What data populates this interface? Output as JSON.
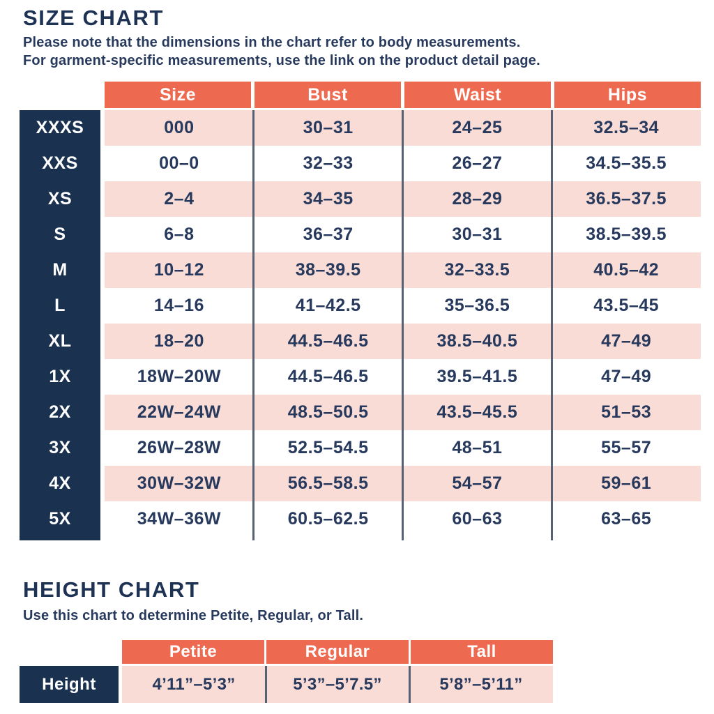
{
  "colors": {
    "coral_header": "#ED6A50",
    "pink_row": "#FADCD6",
    "navy_label": "#1A3150",
    "text_navy": "#27395C",
    "divider": "#566274"
  },
  "size_chart": {
    "title": "SIZE CHART",
    "note_line1": "Please note that the dimensions in the chart refer to body measurements.",
    "note_line2": "For garment-specific measurements, use the link on the product detail page.",
    "columns": [
      "Size",
      "Bust",
      "Waist",
      "Hips"
    ],
    "rows": [
      {
        "label": "XXXS",
        "cells": [
          "000",
          "30–31",
          "24–25",
          "32.5–34"
        ]
      },
      {
        "label": "XXS",
        "cells": [
          "00–0",
          "32–33",
          "26–27",
          "34.5–35.5"
        ]
      },
      {
        "label": "XS",
        "cells": [
          "2–4",
          "34–35",
          "28–29",
          "36.5–37.5"
        ]
      },
      {
        "label": "S",
        "cells": [
          "6–8",
          "36–37",
          "30–31",
          "38.5–39.5"
        ]
      },
      {
        "label": "M",
        "cells": [
          "10–12",
          "38–39.5",
          "32–33.5",
          "40.5–42"
        ]
      },
      {
        "label": "L",
        "cells": [
          "14–16",
          "41–42.5",
          "35–36.5",
          "43.5–45"
        ]
      },
      {
        "label": "XL",
        "cells": [
          "18–20",
          "44.5–46.5",
          "38.5–40.5",
          "47–49"
        ]
      },
      {
        "label": "1X",
        "cells": [
          "18W–20W",
          "44.5–46.5",
          "39.5–41.5",
          "47–49"
        ]
      },
      {
        "label": "2X",
        "cells": [
          "22W–24W",
          "48.5–50.5",
          "43.5–45.5",
          "51–53"
        ]
      },
      {
        "label": "3X",
        "cells": [
          "26W–28W",
          "52.5–54.5",
          "48–51",
          "55–57"
        ]
      },
      {
        "label": "4X",
        "cells": [
          "30W–32W",
          "56.5–58.5",
          "54–57",
          "59–61"
        ]
      },
      {
        "label": "5X",
        "cells": [
          "34W–36W",
          "60.5–62.5",
          "60–63",
          "63–65"
        ]
      }
    ]
  },
  "height_chart": {
    "title": "HEIGHT CHART",
    "note": "Use this chart to determine Petite, Regular, or Tall.",
    "columns": [
      "Petite",
      "Regular",
      "Tall"
    ],
    "row_label": "Height",
    "cells": [
      "4’11”–5’3”",
      "5’3”–5’7.5”",
      "5’8”–5’11”"
    ]
  }
}
